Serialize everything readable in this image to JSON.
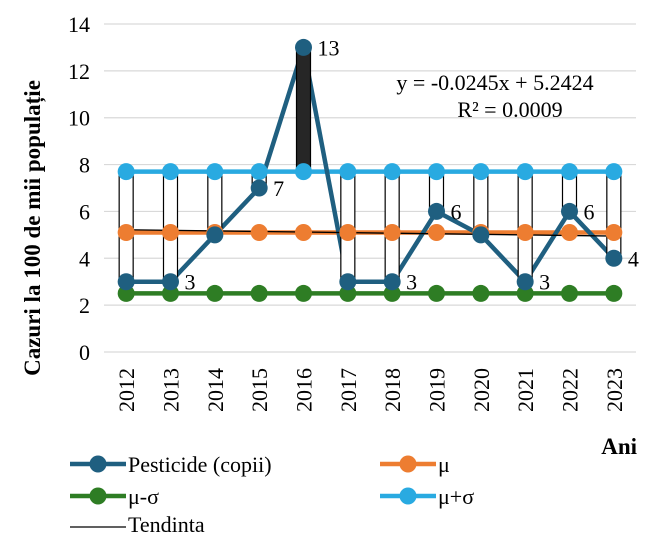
{
  "chart_data": {
    "type": "line",
    "xlabel": "Ani",
    "ylabel": "Cazuri la 100 de mii populație",
    "ylim": [
      0,
      14
    ],
    "yticks": [
      0,
      2,
      4,
      6,
      8,
      10,
      12,
      14
    ],
    "grid": "horizontal",
    "legend_position": "bottom",
    "categories": [
      "2012",
      "2013",
      "2014",
      "2015",
      "2016",
      "2017",
      "2018",
      "2019",
      "2020",
      "2021",
      "2022",
      "2023"
    ],
    "series": [
      {
        "name": "Pesticide (copii)",
        "color": "#1f5f80",
        "values": [
          3,
          3,
          5,
          7,
          13,
          3,
          3,
          6,
          5,
          3,
          6,
          4
        ]
      },
      {
        "name": "μ",
        "color": "#ed7d31",
        "values": [
          5.1,
          5.1,
          5.1,
          5.1,
          5.1,
          5.1,
          5.1,
          5.1,
          5.1,
          5.1,
          5.1,
          5.1
        ]
      },
      {
        "name": "μ-σ",
        "color": "#2e7d24",
        "values": [
          2.5,
          2.5,
          2.5,
          2.5,
          2.5,
          2.5,
          2.5,
          2.5,
          2.5,
          2.5,
          2.5,
          2.5
        ]
      },
      {
        "name": "μ+σ",
        "color": "#29aae1",
        "values": [
          7.7,
          7.7,
          7.7,
          7.7,
          7.7,
          7.7,
          7.7,
          7.7,
          7.7,
          7.7,
          7.7,
          7.7
        ]
      }
    ],
    "trendline": {
      "name": "Tendinta",
      "slope": -0.0245,
      "intercept": 5.2424,
      "equation": "y = -0.0245x + 5.2424",
      "r2": "R² = 0.0009"
    },
    "data_labels": [
      {
        "index": 1,
        "text": "3"
      },
      {
        "index": 3,
        "text": "7"
      },
      {
        "index": 4,
        "text": "13"
      },
      {
        "index": 6,
        "text": "3"
      },
      {
        "index": 7,
        "text": "6"
      },
      {
        "index": 9,
        "text": "3"
      },
      {
        "index": 10,
        "text": "6"
      },
      {
        "index": 11,
        "text": "4"
      }
    ],
    "colors": {
      "gridline": "#d9d9d9",
      "trend": "#000000",
      "updown_up": "#ffffff",
      "updown_down": "#262626"
    }
  }
}
